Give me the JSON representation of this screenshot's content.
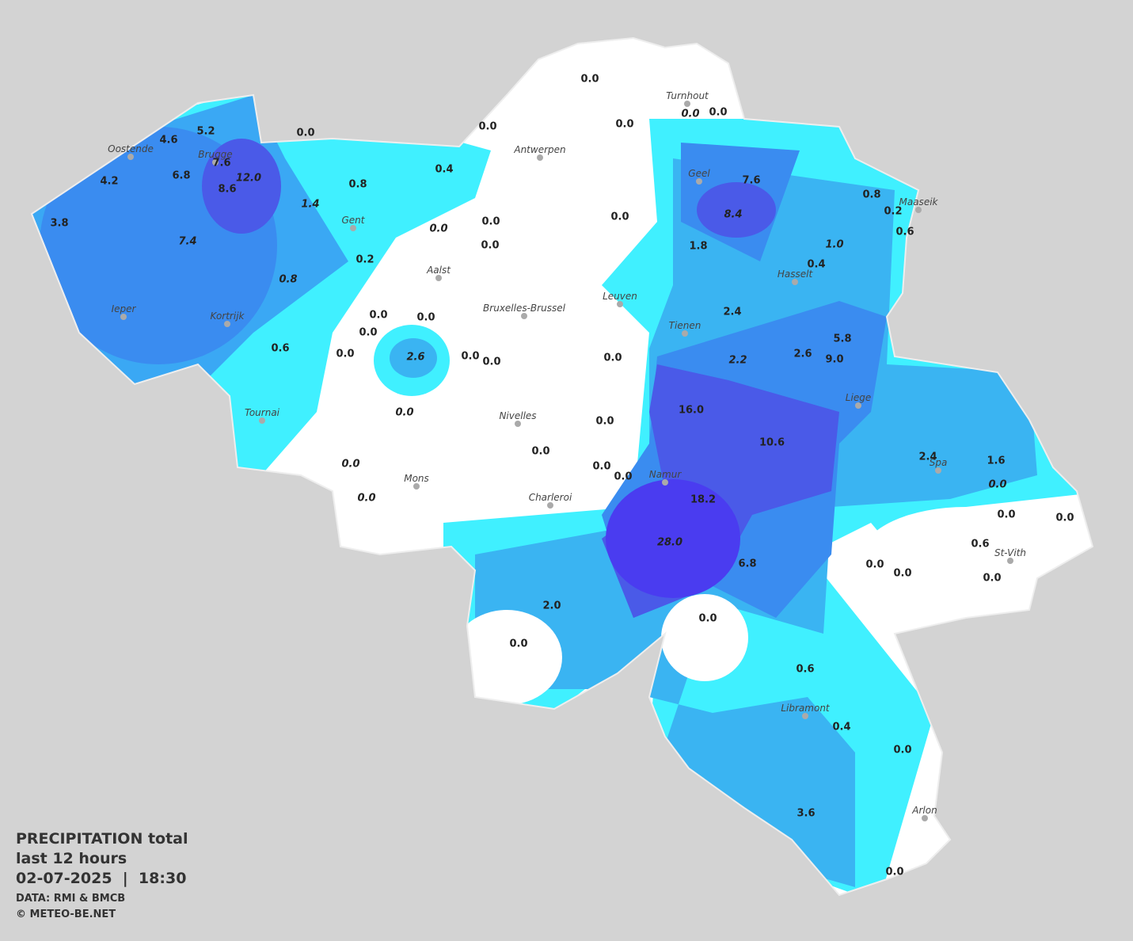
{
  "title": {
    "line1": "PRECIPITATION total",
    "line2": "last 12 hours",
    "line3": "02-07-2025  |  18:30",
    "source": "DATA: RMI & BMCB",
    "copyright": "© METEO-BE.NET"
  },
  "cities": [
    "Turnhout",
    "Antwerpen",
    "Oostende",
    "Brugge",
    "Geel",
    "Maaseik",
    "Gent",
    "Aalst",
    "Hasselt",
    "Leuven",
    "Bruxelles-Brussel",
    "Ieper",
    "Kortrijk",
    "Tienen",
    "Liege",
    "Tournai",
    "Nivelles",
    "Mons",
    "Namur",
    "Spa",
    "Charleroi",
    "St-Vith",
    "Libramont",
    "Arlon"
  ],
  "stations": [
    "0.0",
    "0.0",
    "0.0",
    "0.0",
    "0.0",
    "0.0",
    "5.2",
    "4.6",
    "7.6",
    "6.8",
    "4.2",
    "12.0",
    "8.6",
    "0.4",
    "0.8",
    "1.4",
    "3.8",
    "7.4",
    "0.0",
    "0.0",
    "0.0",
    "0.0",
    "7.6",
    "8.4",
    "0.8",
    "0.2",
    "0.6",
    "1.0",
    "1.8",
    "0.4",
    "0.2",
    "0.8",
    "0.0",
    "0.0",
    "0.0",
    "0.0",
    "2.6",
    "0.0",
    "0.0",
    "0.0",
    "0.6",
    "2.4",
    "5.8",
    "2.2",
    "2.6",
    "9.0",
    "0.0",
    "16.0",
    "0.0",
    "0.0",
    "10.6",
    "0.0",
    "0.0",
    "0.0",
    "2.4",
    "1.6",
    "0.0",
    "0.0",
    "18.2",
    "0.0",
    "0.0",
    "28.0",
    "0.6",
    "6.8",
    "0.0",
    "0.0",
    "0.0",
    "2.0",
    "0.0",
    "0.0",
    "0.6",
    "0.4",
    "0.0",
    "3.6",
    "0.0"
  ]
}
